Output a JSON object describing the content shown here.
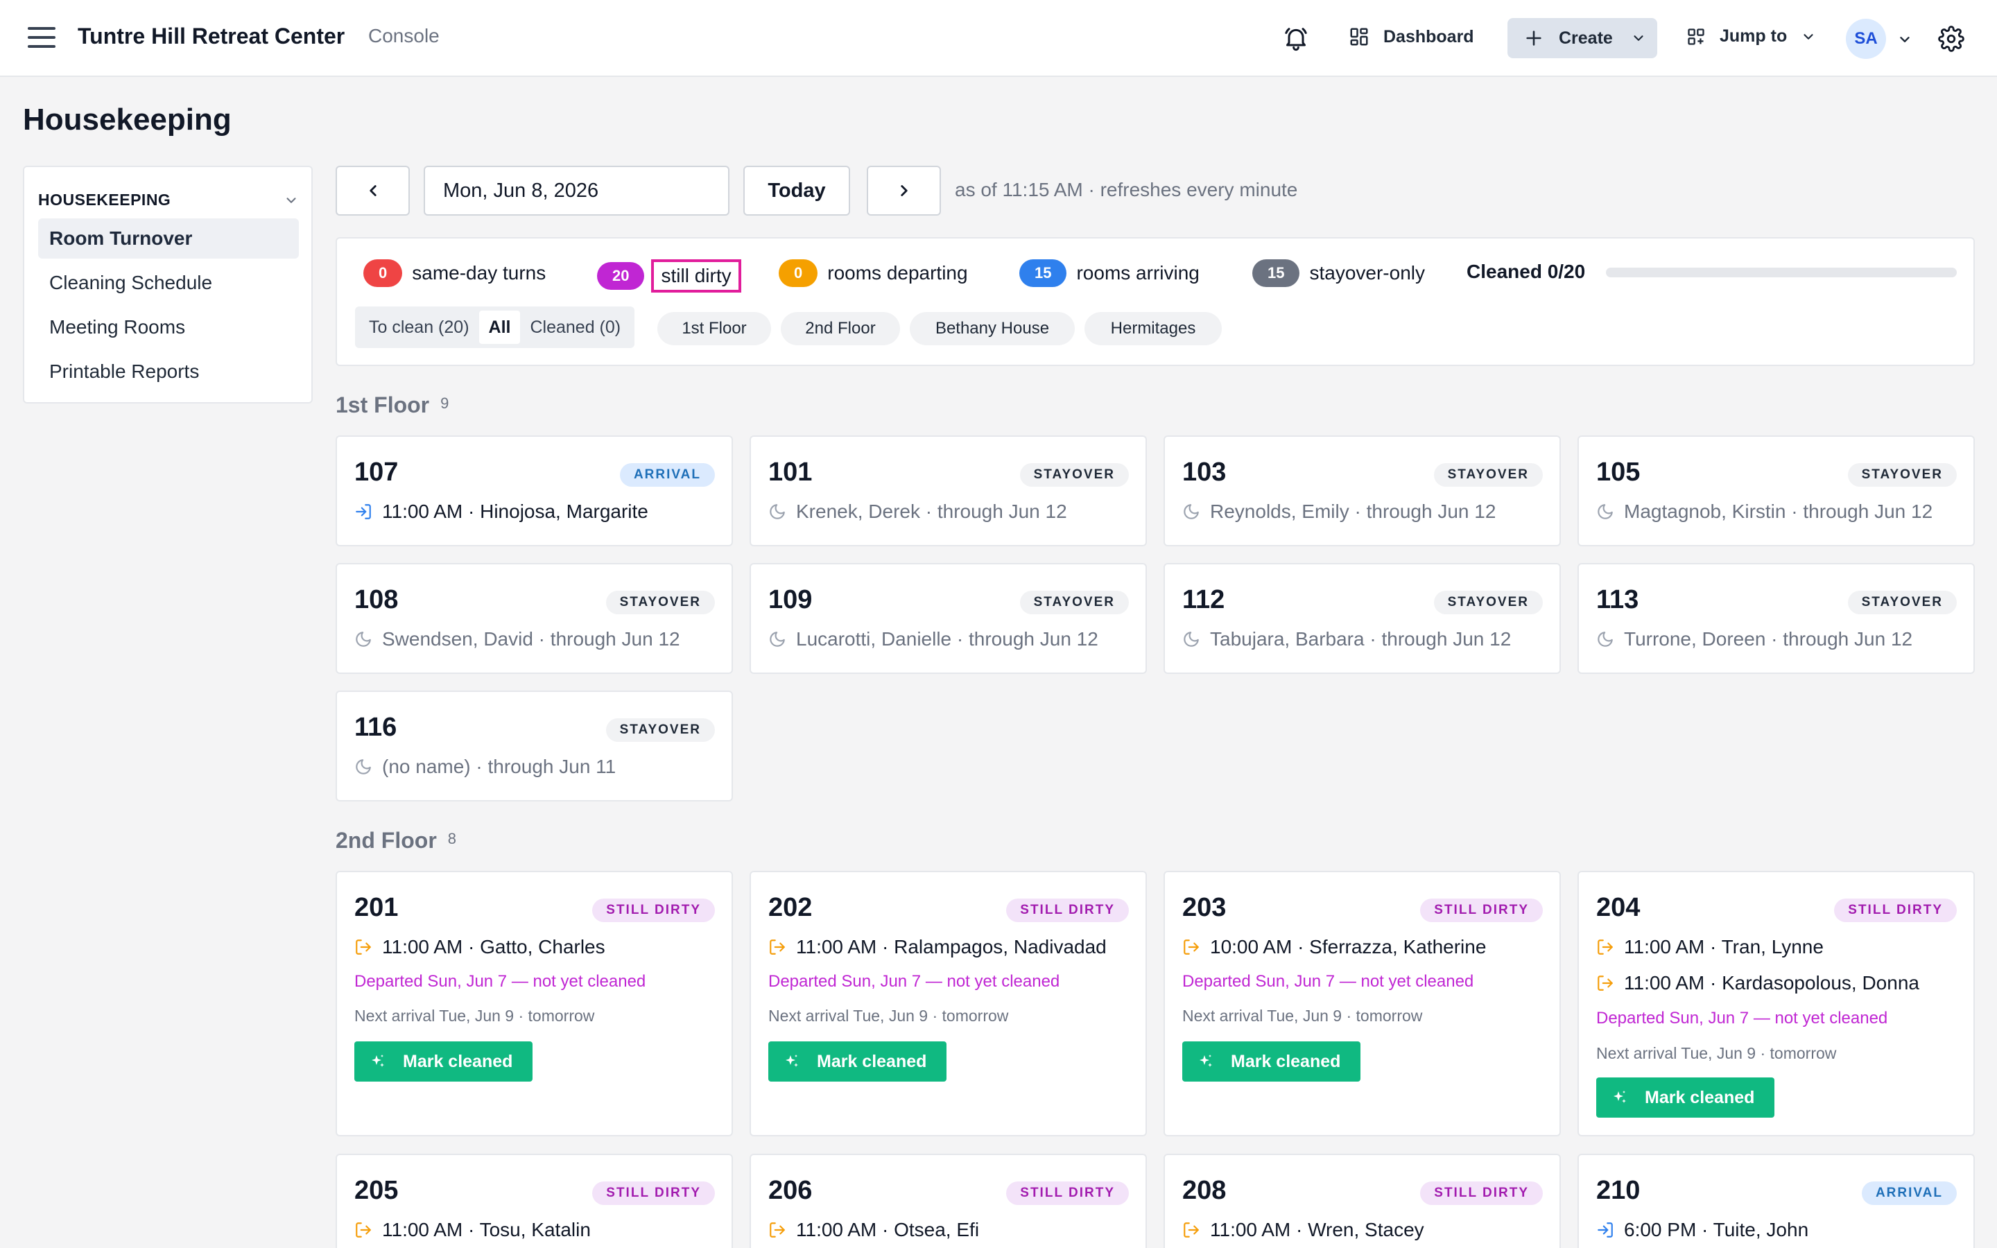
{
  "header": {
    "title": "Tuntre Hill Retreat Center",
    "subtitle": "Console",
    "dashboard_label": "Dashboard",
    "create_label": "Create",
    "jump_label": "Jump to",
    "avatar_initials": "SA"
  },
  "page": {
    "title": "Housekeeping"
  },
  "sidebar": {
    "heading": "HOUSEKEEPING",
    "items": [
      {
        "label": "Room Turnover",
        "active": true
      },
      {
        "label": "Cleaning Schedule"
      },
      {
        "label": "Meeting Rooms"
      },
      {
        "label": "Printable Reports"
      }
    ]
  },
  "datebar": {
    "date_value": "Mon, Jun 8, 2026",
    "today_label": "Today",
    "as_of": "as of 11:15 AM · refreshes every minute"
  },
  "summary": {
    "stats": [
      {
        "count": "0",
        "label": "same-day turns",
        "color": "#ef4444"
      },
      {
        "count": "20",
        "label": "still dirty",
        "color": "#c026d3"
      },
      {
        "count": "0",
        "label": "rooms departing",
        "color": "#f5a000"
      },
      {
        "count": "15",
        "label": "rooms arriving",
        "color": "#2f80ed"
      },
      {
        "count": "15",
        "label": "stayover-only",
        "color": "#6b7280"
      }
    ],
    "cleaned_label": "Cleaned 0/20",
    "cleaned_fraction": 0,
    "filters": {
      "to_clean": "To clean (20)",
      "all": "All",
      "cleaned": "Cleaned (0)"
    },
    "chips": [
      "1st Floor",
      "2nd Floor",
      "Bethany House",
      "Hermitages"
    ]
  },
  "sections": {
    "first": {
      "title": "1st Floor",
      "count": "9"
    },
    "second": {
      "title": "2nd Floor",
      "count": "8"
    }
  },
  "rooms": {
    "r107": {
      "num": "107",
      "badge": "ARRIVAL",
      "line": "11:00 AM · Hinojosa, Margarite"
    },
    "r101": {
      "num": "101",
      "badge": "STAYOVER",
      "line": "Krenek, Derek · through Jun 12"
    },
    "r103": {
      "num": "103",
      "badge": "STAYOVER",
      "line": "Reynolds, Emily · through Jun 12"
    },
    "r105": {
      "num": "105",
      "badge": "STAYOVER",
      "line": "Magtagnob, Kirstin · through Jun 12"
    },
    "r108": {
      "num": "108",
      "badge": "STAYOVER",
      "line": "Swendsen, David · through Jun 12"
    },
    "r109": {
      "num": "109",
      "badge": "STAYOVER",
      "line": "Lucarotti, Danielle · through Jun 12"
    },
    "r112": {
      "num": "112",
      "badge": "STAYOVER",
      "line": "Tabujara, Barbara · through Jun 12"
    },
    "r113": {
      "num": "113",
      "badge": "STAYOVER",
      "line": "Turrone, Doreen · through Jun 12"
    },
    "r116": {
      "num": "116",
      "badge": "STAYOVER",
      "line": "(no name) · through Jun 11"
    },
    "r201": {
      "num": "201",
      "badge": "STILL DIRTY",
      "line": "11:00 AM · Gatto, Charles",
      "departed": "Departed Sun, Jun 7 — not yet cleaned",
      "next": "Next arrival Tue, Jun 9 · tomorrow",
      "action": "Mark cleaned"
    },
    "r202": {
      "num": "202",
      "badge": "STILL DIRTY",
      "line": "11:00 AM · Ralampagos, Nadivadad",
      "departed": "Departed Sun, Jun 7 — not yet cleaned",
      "next": "Next arrival Tue, Jun 9 · tomorrow",
      "action": "Mark cleaned"
    },
    "r203": {
      "num": "203",
      "badge": "STILL DIRTY",
      "line": "10:00 AM · Sferrazza, Katherine",
      "departed": "Departed Sun, Jun 7 — not yet cleaned",
      "next": "Next arrival Tue, Jun 9 · tomorrow",
      "action": "Mark cleaned"
    },
    "r204": {
      "num": "204",
      "badge": "STILL DIRTY",
      "line": "11:00 AM · Tran, Lynne",
      "line2": "11:00 AM · Kardasopolous, Donna",
      "departed": "Departed Sun, Jun 7 — not yet cleaned",
      "next": "Next arrival Tue, Jun 9 · tomorrow",
      "action": "Mark cleaned"
    },
    "r205": {
      "num": "205",
      "badge": "STILL DIRTY",
      "line": "11:00 AM · Tosu, Katalin"
    },
    "r206": {
      "num": "206",
      "badge": "STILL DIRTY",
      "line": "11:00 AM · Otsea, Efi"
    },
    "r208": {
      "num": "208",
      "badge": "STILL DIRTY",
      "line": "11:00 AM · Wren, Stacey"
    },
    "r210": {
      "num": "210",
      "badge": "ARRIVAL",
      "line": "6:00 PM · Tuite, John"
    }
  },
  "colors": {
    "accent_green": "#10b981",
    "dirty_magenta": "#c026d3",
    "arrival_blue": "#2f80ed",
    "departure_orange": "#f5a000"
  }
}
